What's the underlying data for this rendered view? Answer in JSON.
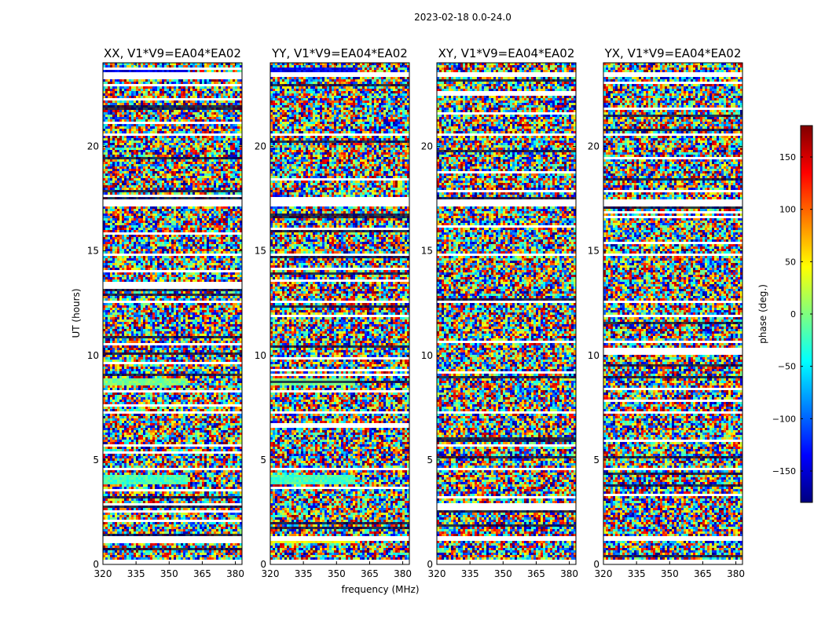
{
  "figure_title": "2023-02-18 0.0-24.0",
  "chart_data": {
    "type": "heatmap",
    "xlabel": "frequency (MHz)",
    "ylabel": "UT (hours)",
    "xlim": [
      320,
      383
    ],
    "ylim": [
      0,
      24
    ],
    "xticks": [
      320,
      335,
      350,
      365,
      380
    ],
    "yticks": [
      0,
      5,
      10,
      15,
      20
    ],
    "colorbar": {
      "label": "phase (deg.)",
      "range": [
        -180,
        180
      ],
      "ticks": [
        150,
        100,
        50,
        0,
        -50,
        -100,
        -150
      ],
      "colormap": "jet",
      "colors": [
        "#00007f",
        "#0000ff",
        "#007fff",
        "#00ffff",
        "#7fff7f",
        "#ffff00",
        "#ff7f00",
        "#ff0000",
        "#7f0000"
      ]
    },
    "panels": [
      {
        "title": "XX, V1*V9=EA04*EA02",
        "polarization": "XX"
      },
      {
        "title": "YY, V1*V9=EA04*EA02",
        "polarization": "YY"
      },
      {
        "title": "XY, V1*V9=EA04*EA02",
        "polarization": "XY"
      },
      {
        "title": "YX, V1*V9=EA04*EA02",
        "polarization": "YX"
      }
    ],
    "flagged_bands_hours": [
      [
        0.05,
        0.2
      ],
      [
        1.15,
        1.3
      ],
      [
        4.55,
        4.65
      ],
      [
        7.2,
        7.3
      ],
      [
        12.55,
        12.6
      ],
      [
        14.8,
        14.9
      ],
      [
        17.1,
        17.5
      ],
      [
        20.5,
        20.65
      ],
      [
        23.35,
        23.5
      ]
    ],
    "coherent_bands_hours": [
      {
        "range": [
          1.0,
          1.15
        ],
        "phase": 40
      },
      {
        "range": [
          3.8,
          4.3
        ],
        "phase": -20
      },
      {
        "range": [
          8.6,
          8.85
        ],
        "phase": 0
      },
      {
        "range": [
          23.5,
          23.8
        ],
        "phase": -140
      }
    ]
  }
}
